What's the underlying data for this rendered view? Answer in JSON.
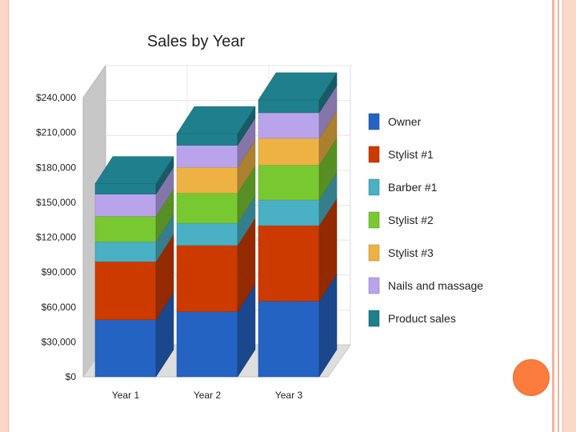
{
  "chart_data": {
    "type": "bar",
    "stacked": true,
    "three_d": true,
    "title": "Sales by Year",
    "xlabel": "",
    "ylabel": "",
    "ylim": [
      0,
      240000
    ],
    "yticks": [
      0,
      30000,
      60000,
      90000,
      120000,
      150000,
      180000,
      210000,
      240000
    ],
    "ytick_labels": [
      "$0",
      "$30,000",
      "$60,000",
      "$90,000",
      "$120,000",
      "$150,000",
      "$180,000",
      "$210,000",
      "$240,000"
    ],
    "categories": [
      "Year 1",
      "Year 2",
      "Year 3"
    ],
    "legend_position": "right",
    "series": [
      {
        "name": "Owner",
        "color": "#2563c3",
        "values": [
          49000,
          56000,
          65000
        ]
      },
      {
        "name": "Stylist #1",
        "color": "#cc3a00",
        "values": [
          50000,
          57000,
          65000
        ]
      },
      {
        "name": "Barber #1",
        "color": "#4ab0c4",
        "values": [
          17000,
          19000,
          22000
        ]
      },
      {
        "name": "Stylist #2",
        "color": "#78c832",
        "values": [
          22000,
          26000,
          30000
        ]
      },
      {
        "name": "Stylist #3",
        "color": "#eeb244",
        "values": [
          0,
          22000,
          23000
        ]
      },
      {
        "name": "Nails and massage",
        "color": "#b9a4ec",
        "values": [
          19000,
          19000,
          22000
        ]
      },
      {
        "name": "Product sales",
        "color": "#1f7f8c",
        "values": [
          9000,
          10000,
          11000
        ]
      }
    ]
  }
}
